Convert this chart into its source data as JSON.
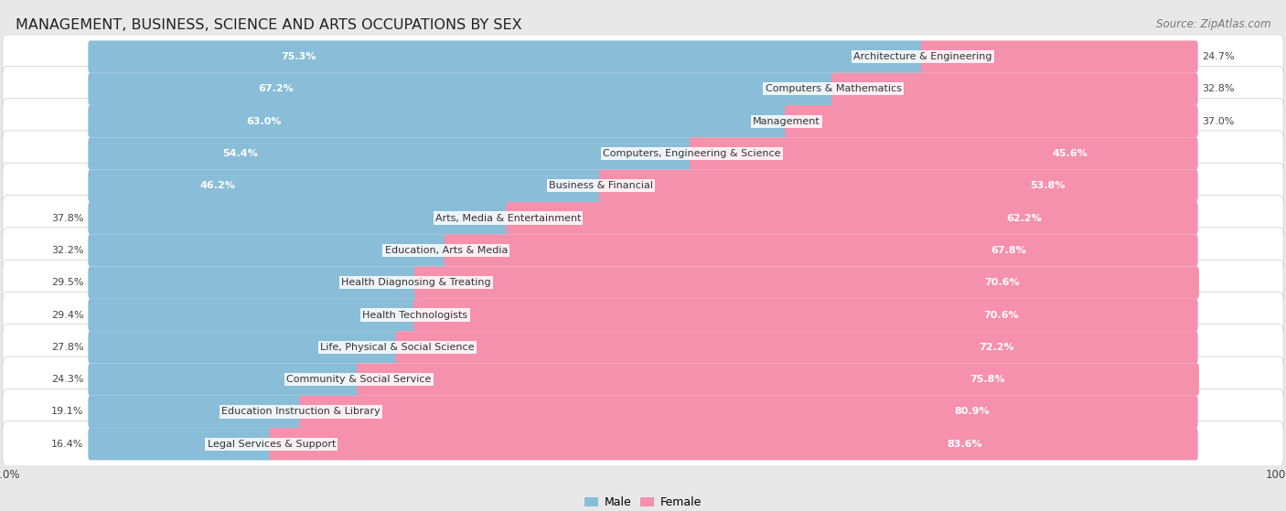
{
  "title": "MANAGEMENT, BUSINESS, SCIENCE AND ARTS OCCUPATIONS BY SEX",
  "source": "Source: ZipAtlas.com",
  "categories": [
    "Architecture & Engineering",
    "Computers & Mathematics",
    "Management",
    "Computers, Engineering & Science",
    "Business & Financial",
    "Arts, Media & Entertainment",
    "Education, Arts & Media",
    "Health Diagnosing & Treating",
    "Health Technologists",
    "Life, Physical & Social Science",
    "Community & Social Service",
    "Education Instruction & Library",
    "Legal Services & Support"
  ],
  "male_pct": [
    75.3,
    67.2,
    63.0,
    54.4,
    46.2,
    37.8,
    32.2,
    29.5,
    29.4,
    27.8,
    24.3,
    19.1,
    16.4
  ],
  "female_pct": [
    24.7,
    32.8,
    37.0,
    45.6,
    53.8,
    62.2,
    67.8,
    70.6,
    70.6,
    72.2,
    75.8,
    80.9,
    83.6
  ],
  "male_color": "#89bdd8",
  "female_color": "#f590ad",
  "background_color": "#e8e8e8",
  "bar_background": "#ffffff",
  "title_fontsize": 11.5,
  "source_fontsize": 8.5,
  "label_fontsize": 8,
  "bar_label_fontsize": 8,
  "figsize": [
    14.06,
    5.59
  ],
  "dpi": 100
}
